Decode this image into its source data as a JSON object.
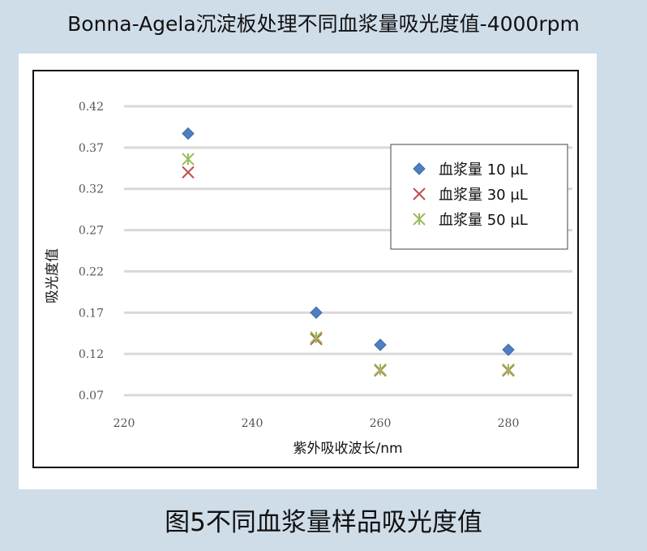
{
  "header": {
    "title": "Bonna-Agela沉淀板处理不同血浆量吸光度值-4000rpm"
  },
  "caption": "图5不同血浆量样品吸光度值",
  "chart_data": {
    "type": "scatter",
    "xlabel": "紫外吸收波长/nm",
    "ylabel": "吸光度值",
    "xlim": [
      220,
      290
    ],
    "ylim": [
      0.07,
      0.42
    ],
    "x_ticks": [
      220,
      240,
      260,
      280
    ],
    "y_ticks": [
      0.07,
      0.12,
      0.17,
      0.22,
      0.27,
      0.32,
      0.37,
      0.42
    ],
    "x_tick_labels": [
      "220",
      "240",
      "260",
      "280"
    ],
    "y_tick_labels": [
      "0.07",
      "0.12",
      "0.17",
      "0.22",
      "0.27",
      "0.32",
      "0.37",
      "0.42"
    ],
    "grid": "horizontal",
    "legend_position": "top-right",
    "series": [
      {
        "name": "血浆量 10 μL",
        "marker": "diamond",
        "color": "#4f7fc3",
        "x": [
          230,
          250,
          260,
          280
        ],
        "y": [
          0.387,
          0.17,
          0.131,
          0.125
        ]
      },
      {
        "name": "血浆量  30 μL",
        "marker": "x",
        "color": "#c0504d",
        "x": [
          230,
          250,
          260,
          280
        ],
        "y": [
          0.34,
          0.138,
          0.1,
          0.1
        ]
      },
      {
        "name": "血浆量  50 μL",
        "marker": "star",
        "color": "#9bbb59",
        "x": [
          230,
          250,
          260,
          280
        ],
        "y": [
          0.356,
          0.14,
          0.101,
          0.101
        ]
      }
    ]
  }
}
